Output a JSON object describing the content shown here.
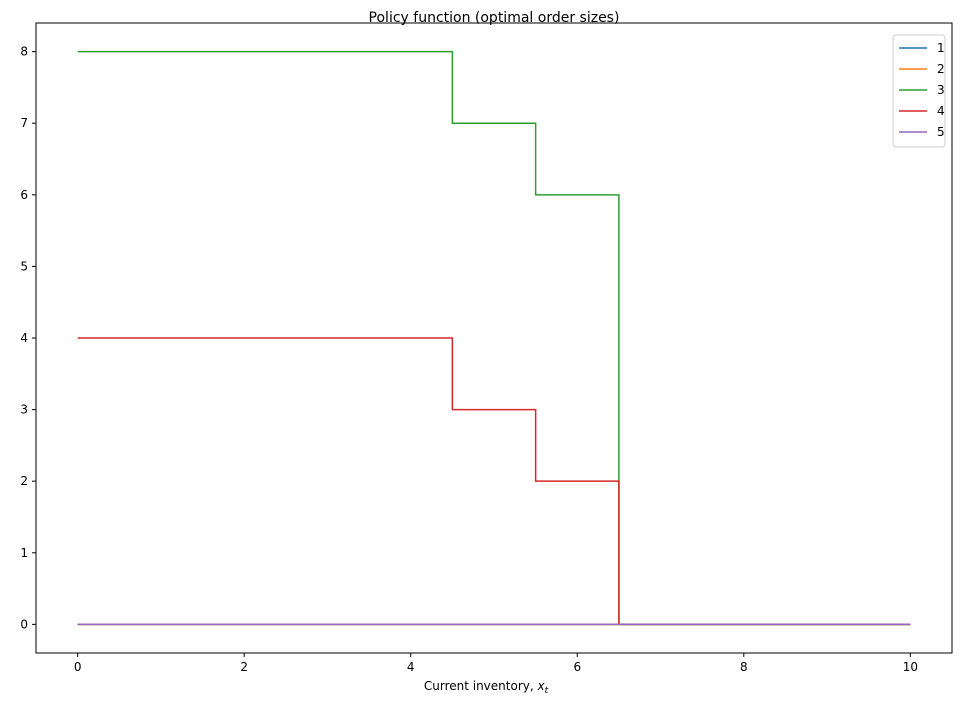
{
  "chart_data": {
    "type": "line",
    "title": "Policy function (optimal order sizes)",
    "xlabel": "Current inventory, ",
    "xlabel_math": "x",
    "xlabel_sub": "t",
    "ylabel": "",
    "xlim": [
      -0.5,
      10.5
    ],
    "ylim": [
      -0.4,
      8.4
    ],
    "xticks": [
      0,
      2,
      4,
      6,
      8,
      10
    ],
    "yticks": [
      0,
      1,
      2,
      3,
      4,
      5,
      6,
      7,
      8
    ],
    "grid": false,
    "legend_position": "top-right",
    "series": [
      {
        "name": "1",
        "color": "#1f77b4",
        "x": [
          0,
          10
        ],
        "y": [
          0,
          0
        ]
      },
      {
        "name": "2",
        "color": "#ff7f0e",
        "x": [
          0,
          10
        ],
        "y": [
          0,
          0
        ]
      },
      {
        "name": "3",
        "color": "#2ca02c",
        "x": [
          0,
          4.5,
          4.5,
          5.5,
          5.5,
          6.5,
          6.5,
          10
        ],
        "y": [
          8,
          8,
          7,
          7,
          6,
          6,
          0,
          0
        ]
      },
      {
        "name": "4",
        "color": "#d62728",
        "x": [
          0,
          4.5,
          4.5,
          5.5,
          5.5,
          6.5,
          6.5,
          10
        ],
        "y": [
          4,
          4,
          3,
          3,
          2,
          2,
          0,
          0
        ]
      },
      {
        "name": "5",
        "color": "#9467bd",
        "x": [
          0,
          10
        ],
        "y": [
          0,
          0
        ]
      }
    ]
  }
}
